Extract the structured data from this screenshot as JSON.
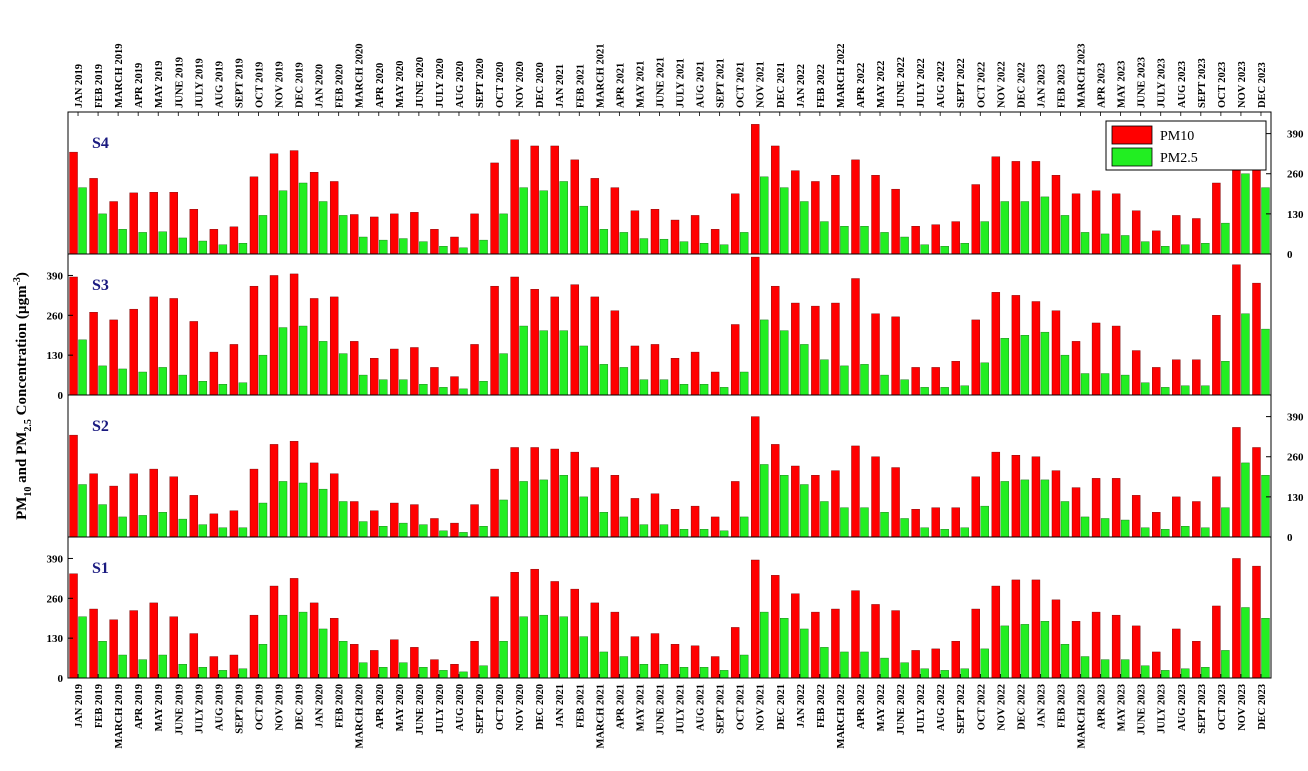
{
  "colors": {
    "pm10": "#ff0000",
    "pm25": "#22ee22"
  },
  "chart_data": {
    "type": "bar",
    "ylabel": "PM10 and PM2.5 Concentration (µgm-3)",
    "ylabel_parts": {
      "a": "PM",
      "a_sub": "10",
      "b": " and PM",
      "b_sub": "2.5",
      "c": " Concentration (µgm",
      "c_sup": "-3",
      "d": ")"
    },
    "legend": {
      "position": "top-right",
      "entries": [
        "PM10",
        "PM2.5"
      ]
    },
    "categories": [
      "JAN 2019",
      "FEB 2019",
      "MARCH 2019",
      "APR 2019",
      "MAY 2019",
      "JUNE 2019",
      "JULY 2019",
      "AUG 2019",
      "SEPT 2019",
      "OCT 2019",
      "NOV 2019",
      "DEC 2019",
      "JAN 2020",
      "FEB 2020",
      "MARCH 2020",
      "APR 2020",
      "MAY 2020",
      "JUNE 2020",
      "JULY 2020",
      "AUG 2020",
      "SEPT 2020",
      "OCT 2020",
      "NOV 2020",
      "DEC 2020",
      "JAN 2021",
      "FEB 2021",
      "MARCH 2021",
      "APR 2021",
      "MAY 2021",
      "JUNE 2021",
      "JULY 2021",
      "AUG 2021",
      "SEPT 2021",
      "OCT 2021",
      "NOV 2021",
      "DEC 2021",
      "JAN 2022",
      "FEB 2022",
      "MARCH 2022",
      "APR 2022",
      "MAY 2022",
      "JUNE 2022",
      "JULY 2022",
      "AUG 2022",
      "SEPT 2022",
      "OCT 2022",
      "NOV 2022",
      "DEC 2022",
      "JAN 2023",
      "FEB 2023",
      "MARCH 2023",
      "APR 2023",
      "MAY 2023",
      "JUNE 2023",
      "JULY 2023",
      "AUG 2023",
      "SEPT 2023",
      "OCT 2023",
      "NOV 2023",
      "DEC 2023"
    ],
    "ylim": [
      0,
      460
    ],
    "yticks": [
      0,
      130,
      260,
      390
    ],
    "panels": [
      {
        "name": "S4",
        "tick_side": "right",
        "series": [
          {
            "name": "PM10",
            "values": [
              330,
              245,
              170,
              198,
              200,
              200,
              145,
              80,
              88,
              250,
              325,
              335,
              265,
              235,
              128,
              120,
              130,
              135,
              80,
              55,
              130,
              295,
              370,
              350,
              350,
              305,
              245,
              215,
              140,
              145,
              110,
              125,
              80,
              195,
              420,
              350,
              270,
              235,
              255,
              305,
              255,
              210,
              90,
              95,
              105,
              225,
              315,
              300,
              300,
              255,
              195,
              205,
              195,
              140,
              75,
              125,
              115,
              230,
              405,
              350
            ]
          },
          {
            "name": "PM2.5",
            "values": [
              215,
              130,
              80,
              70,
              72,
              52,
              42,
              30,
              35,
              125,
              205,
              230,
              170,
              125,
              55,
              45,
              50,
              40,
              25,
              20,
              45,
              130,
              215,
              205,
              235,
              155,
              80,
              70,
              50,
              48,
              40,
              35,
              30,
              70,
              250,
              215,
              170,
              105,
              90,
              90,
              70,
              55,
              30,
              25,
              35,
              105,
              170,
              170,
              185,
              125,
              70,
              65,
              60,
              40,
              25,
              30,
              35,
              100,
              260,
              215
            ]
          }
        ]
      },
      {
        "name": "S3",
        "tick_side": "left",
        "series": [
          {
            "name": "PM10",
            "values": [
              385,
              270,
              245,
              280,
              320,
              315,
              240,
              140,
              165,
              355,
              390,
              395,
              315,
              320,
              175,
              120,
              150,
              155,
              90,
              60,
              165,
              355,
              385,
              345,
              320,
              360,
              320,
              275,
              160,
              165,
              120,
              140,
              75,
              230,
              450,
              355,
              300,
              290,
              300,
              380,
              265,
              255,
              90,
              90,
              110,
              245,
              335,
              325,
              305,
              275,
              175,
              235,
              225,
              145,
              90,
              115,
              115,
              260,
              425,
              365
            ]
          },
          {
            "name": "PM2.5",
            "values": [
              180,
              95,
              85,
              75,
              90,
              65,
              45,
              35,
              40,
              130,
              220,
              225,
              175,
              135,
              65,
              50,
              50,
              35,
              25,
              20,
              45,
              135,
              225,
              210,
              210,
              160,
              100,
              90,
              50,
              50,
              35,
              35,
              25,
              75,
              245,
              210,
              165,
              115,
              95,
              100,
              65,
              50,
              25,
              25,
              30,
              105,
              185,
              195,
              205,
              130,
              70,
              70,
              65,
              40,
              25,
              30,
              30,
              110,
              265,
              215
            ]
          }
        ]
      },
      {
        "name": "S2",
        "tick_side": "right",
        "series": [
          {
            "name": "PM10",
            "values": [
              330,
              205,
              165,
              205,
              220,
              195,
              135,
              75,
              85,
              220,
              300,
              310,
              240,
              205,
              115,
              85,
              110,
              105,
              60,
              45,
              105,
              220,
              290,
              290,
              285,
              275,
              225,
              200,
              125,
              140,
              90,
              100,
              65,
              180,
              390,
              300,
              230,
              200,
              215,
              295,
              260,
              225,
              90,
              95,
              95,
              195,
              275,
              265,
              260,
              215,
              160,
              190,
              190,
              135,
              80,
              130,
              115,
              195,
              355,
              290
            ]
          },
          {
            "name": "PM2.5",
            "values": [
              170,
              105,
              65,
              70,
              80,
              58,
              40,
              30,
              30,
              110,
              180,
              175,
              155,
              115,
              50,
              35,
              45,
              40,
              20,
              15,
              35,
              120,
              180,
              185,
              200,
              130,
              80,
              65,
              40,
              40,
              25,
              25,
              20,
              65,
              235,
              200,
              170,
              115,
              95,
              95,
              80,
              60,
              30,
              25,
              30,
              100,
              180,
              185,
              185,
              115,
              65,
              60,
              55,
              30,
              25,
              35,
              30,
              95,
              240,
              200
            ]
          }
        ]
      },
      {
        "name": "S1",
        "tick_side": "left",
        "series": [
          {
            "name": "PM10",
            "values": [
              340,
              225,
              190,
              220,
              245,
              200,
              145,
              70,
              75,
              205,
              300,
              325,
              245,
              195,
              110,
              90,
              125,
              100,
              60,
              45,
              120,
              265,
              345,
              355,
              315,
              290,
              245,
              215,
              135,
              145,
              110,
              105,
              70,
              165,
              385,
              335,
              275,
              215,
              225,
              285,
              240,
              220,
              90,
              95,
              120,
              225,
              300,
              320,
              320,
              255,
              185,
              215,
              205,
              170,
              85,
              160,
              120,
              235,
              390,
              365
            ]
          },
          {
            "name": "PM2.5",
            "values": [
              200,
              120,
              75,
              60,
              75,
              45,
              35,
              25,
              30,
              110,
              205,
              215,
              160,
              120,
              50,
              35,
              50,
              35,
              25,
              20,
              40,
              120,
              200,
              205,
              200,
              135,
              85,
              70,
              45,
              45,
              35,
              35,
              25,
              75,
              215,
              195,
              160,
              100,
              85,
              85,
              65,
              50,
              30,
              25,
              30,
              95,
              170,
              175,
              185,
              110,
              70,
              60,
              60,
              40,
              25,
              30,
              35,
              90,
              230,
              195
            ]
          }
        ]
      }
    ]
  }
}
